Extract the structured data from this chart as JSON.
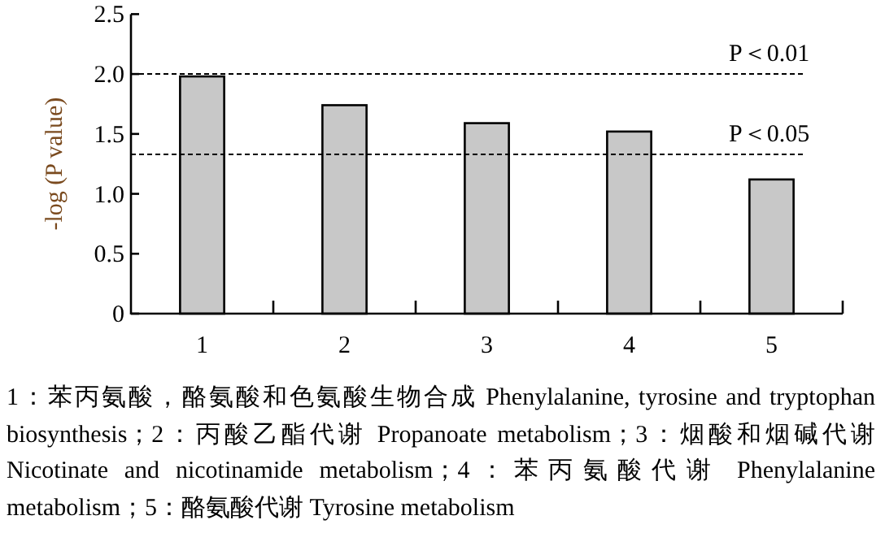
{
  "chart_data": {
    "type": "bar",
    "ylabel": "-log (P value)",
    "categories": [
      "1",
      "2",
      "3",
      "4",
      "5"
    ],
    "values": [
      1.98,
      1.74,
      1.59,
      1.52,
      1.12
    ],
    "color": "#c8c8c8",
    "ylim": [
      0,
      2.5
    ],
    "yticks": [
      0,
      0.5,
      {
        "value": 1,
        "label": "1.0"
      },
      1.5,
      {
        "value": 2,
        "label": "2.0"
      },
      2.5
    ],
    "ref_lines": [
      {
        "axis": "y",
        "value": 2.0,
        "label": "P＜0.01",
        "line_style": "dashed",
        "color": "#000000"
      },
      {
        "axis": "y",
        "value": 1.33,
        "label": "P＜0.05",
        "line_style": "dashed",
        "color": "#000000"
      }
    ],
    "annotations": [
      "1：苯丙氨酸，酪氨酸和色氨酸生物合成 Phenylalanine, tyrosine and tryptophan biosynthesis；2：丙酸乙酯代谢 Propanoate metabolism；3：烟酸和烟碱代谢 Nicotinate and nicotinamide metabolism；4：苯丙氨酸代谢 Phenylalanine metabolism；5：酪氨酸代谢 Tyrosine metabolism"
    ],
    "grid": false
  }
}
